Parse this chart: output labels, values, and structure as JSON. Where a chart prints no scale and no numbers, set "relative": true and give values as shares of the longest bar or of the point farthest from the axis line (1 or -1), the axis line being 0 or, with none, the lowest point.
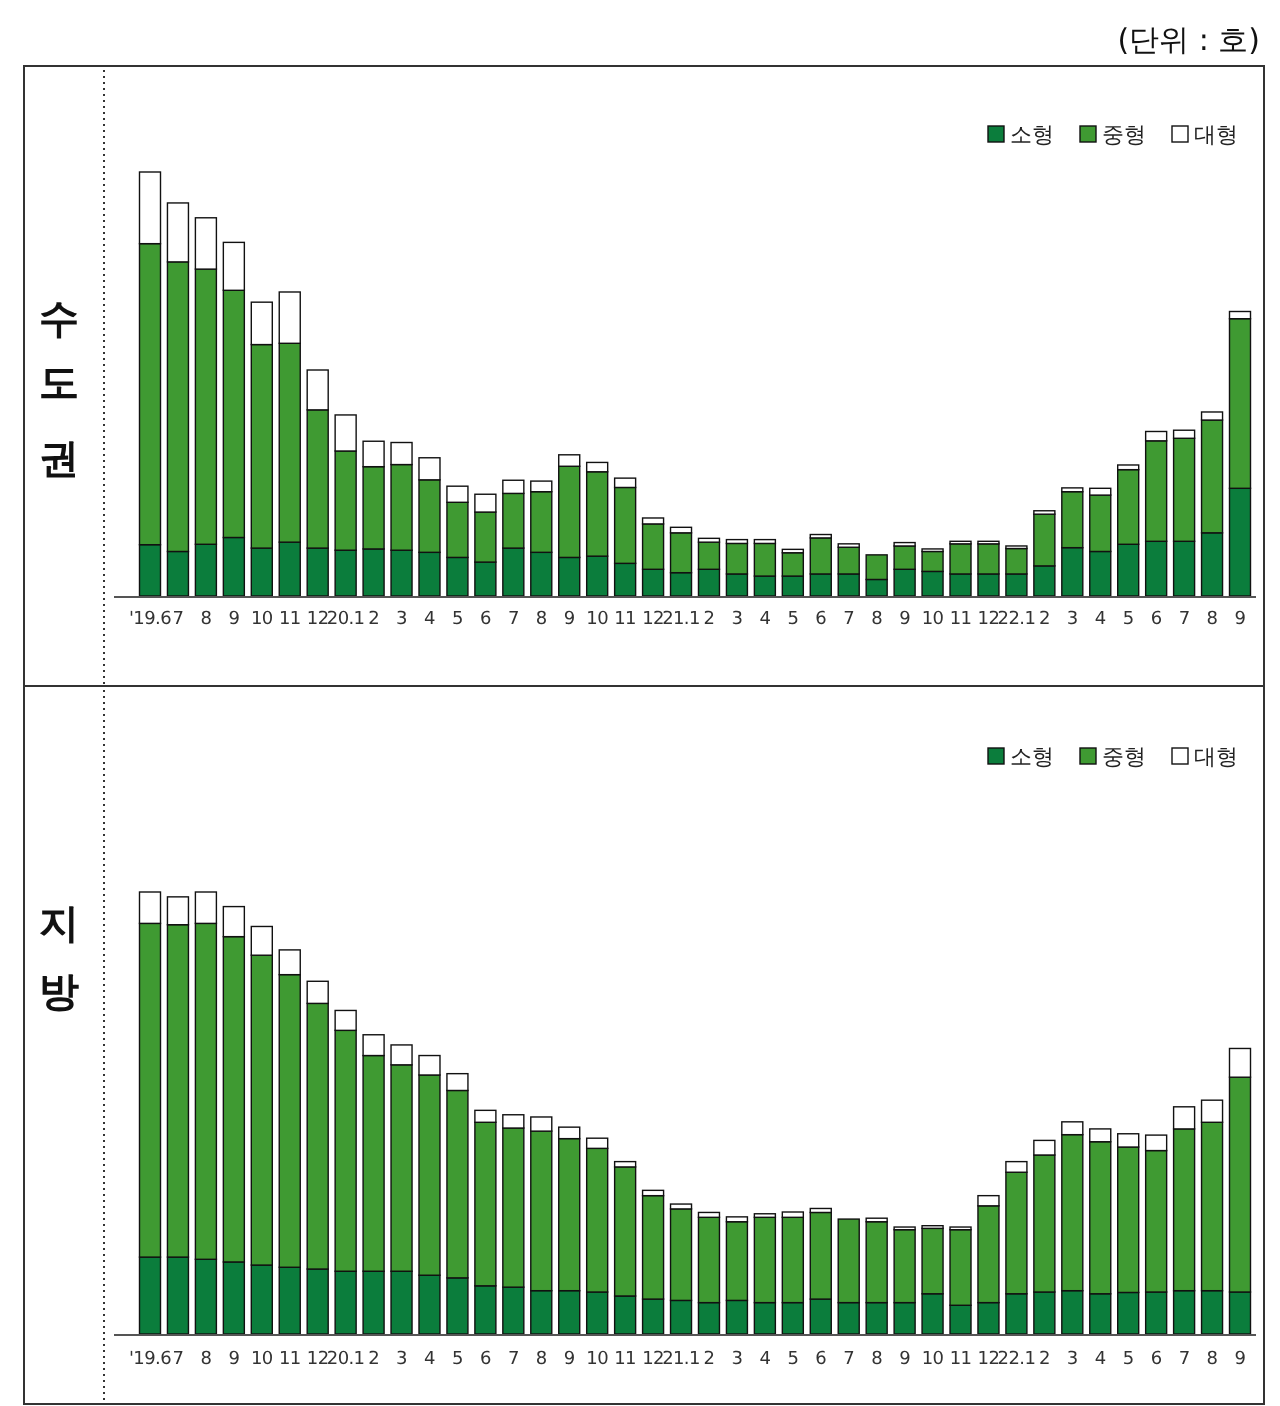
{
  "chart_data": [
    {
      "type": "bar",
      "title": "수도권",
      "stacked": true,
      "relative": true,
      "legend": "top right",
      "annotations": [
        "(단위 : 호)"
      ],
      "categories": [
        "'19.6",
        "7",
        "8",
        "9",
        "10",
        "11",
        "12",
        "20.1",
        "2",
        "3",
        "4",
        "5",
        "6",
        "7",
        "8",
        "9",
        "10",
        "11",
        "12",
        "21.1",
        "2",
        "3",
        "4",
        "5",
        "6",
        "7",
        "8",
        "9",
        "10",
        "11",
        "12",
        "22.1",
        "2",
        "3",
        "4",
        "5",
        "6",
        "7",
        "8",
        "9"
      ],
      "series": [
        {
          "name": "소형",
          "color": "#0b7d3c",
          "values": [
            0.121,
            0.105,
            0.122,
            0.138,
            0.113,
            0.127,
            0.113,
            0.108,
            0.111,
            0.108,
            0.103,
            0.091,
            0.08,
            0.113,
            0.103,
            0.091,
            0.094,
            0.077,
            0.063,
            0.055,
            0.063,
            0.052,
            0.047,
            0.047,
            0.052,
            0.052,
            0.039,
            0.063,
            0.058,
            0.052,
            0.052,
            0.052,
            0.071,
            0.114,
            0.105,
            0.122,
            0.129,
            0.129,
            0.149,
            0.254
          ]
        },
        {
          "name": "중형",
          "color": "#3f9a32",
          "values": [
            0.71,
            0.683,
            0.649,
            0.583,
            0.48,
            0.469,
            0.326,
            0.234,
            0.194,
            0.202,
            0.171,
            0.13,
            0.118,
            0.129,
            0.143,
            0.215,
            0.199,
            0.179,
            0.107,
            0.094,
            0.064,
            0.072,
            0.077,
            0.055,
            0.085,
            0.063,
            0.058,
            0.055,
            0.047,
            0.071,
            0.071,
            0.06,
            0.122,
            0.132,
            0.133,
            0.176,
            0.237,
            0.243,
            0.266,
            0.4
          ]
        },
        {
          "name": "대형",
          "color": "#ffffff",
          "values": [
            0.169,
            0.139,
            0.121,
            0.113,
            0.1,
            0.121,
            0.094,
            0.085,
            0.06,
            0.052,
            0.052,
            0.038,
            0.042,
            0.031,
            0.025,
            0.027,
            0.022,
            0.022,
            0.014,
            0.013,
            0.009,
            0.009,
            0.009,
            0.008,
            0.008,
            0.008,
            null,
            0.008,
            0.006,
            0.006,
            0.006,
            0.006,
            0.008,
            0.009,
            0.016,
            0.011,
            0.022,
            0.019,
            0.019,
            0.017
          ]
        }
      ]
    },
    {
      "type": "bar",
      "title": "지방",
      "stacked": true,
      "relative": true,
      "legend": "top right",
      "categories": [
        "'19.6",
        "7",
        "8",
        "9",
        "10",
        "11",
        "12",
        "20.1",
        "2",
        "3",
        "4",
        "5",
        "6",
        "7",
        "8",
        "9",
        "10",
        "11",
        "12",
        "21.1",
        "2",
        "3",
        "4",
        "5",
        "6",
        "7",
        "8",
        "9",
        "10",
        "11",
        "12",
        "22.1",
        "2",
        "3",
        "4",
        "5",
        "6",
        "7",
        "8",
        "9"
      ],
      "series": [
        {
          "name": "소형",
          "color": "#0b7d3c",
          "values": [
            0.174,
            0.174,
            0.169,
            0.163,
            0.156,
            0.151,
            0.147,
            0.142,
            0.142,
            0.142,
            0.133,
            0.127,
            0.109,
            0.106,
            0.098,
            0.098,
            0.095,
            0.086,
            0.079,
            0.076,
            0.071,
            0.076,
            0.071,
            0.071,
            0.079,
            0.071,
            0.071,
            0.071,
            0.091,
            0.065,
            0.071,
            0.091,
            0.095,
            0.098,
            0.091,
            0.094,
            0.095,
            0.098,
            0.098,
            0.095
          ]
        },
        {
          "name": "중형",
          "color": "#3f9a32",
          "values": [
            0.755,
            0.752,
            0.76,
            0.736,
            0.701,
            0.662,
            0.601,
            0.545,
            0.488,
            0.467,
            0.453,
            0.424,
            0.37,
            0.36,
            0.361,
            0.344,
            0.325,
            0.292,
            0.234,
            0.207,
            0.193,
            0.178,
            0.193,
            0.193,
            0.196,
            0.189,
            0.183,
            0.165,
            0.148,
            0.171,
            0.219,
            0.275,
            0.31,
            0.353,
            0.344,
            0.329,
            0.32,
            0.366,
            0.381,
            0.486
          ]
        },
        {
          "name": "대형",
          "color": "#ffffff",
          "values": [
            0.071,
            0.063,
            0.071,
            0.068,
            0.065,
            0.056,
            0.05,
            0.045,
            0.047,
            0.045,
            0.044,
            0.038,
            0.027,
            0.03,
            0.032,
            0.026,
            0.023,
            0.012,
            0.012,
            0.011,
            0.011,
            0.011,
            0.008,
            0.012,
            0.009,
            null,
            0.008,
            0.006,
            0.006,
            0.006,
            0.023,
            0.024,
            0.033,
            0.029,
            0.029,
            0.03,
            0.035,
            0.05,
            0.05,
            0.065
          ]
        }
      ]
    }
  ]
}
